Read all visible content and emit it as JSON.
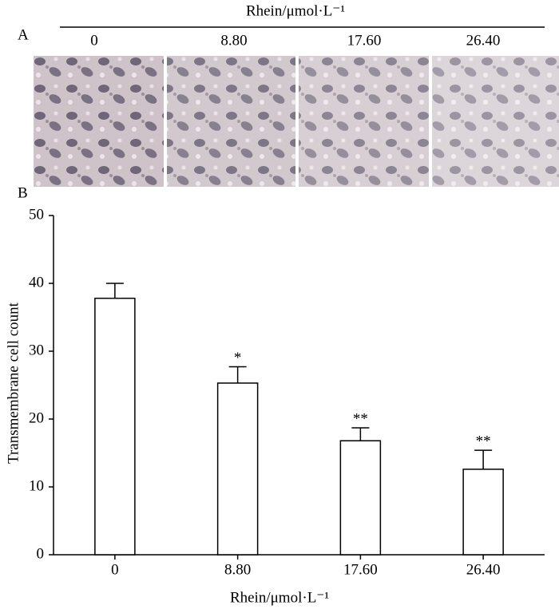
{
  "panel_a": {
    "label": "A",
    "header": "Rhein/μmol·L⁻¹",
    "columns": [
      "0",
      "8.80",
      "17.60",
      "26.40"
    ]
  },
  "chart_data": {
    "type": "bar",
    "panel_label": "B",
    "xlabel": "Rhein/μmol·L⁻¹",
    "ylabel": "Transmembrane cell count",
    "categories": [
      "0",
      "8.80",
      "17.60",
      "26.40"
    ],
    "values": [
      37.8,
      25.3,
      16.8,
      12.6
    ],
    "errors": [
      2.2,
      2.4,
      1.9,
      2.8
    ],
    "annotations": [
      null,
      "*",
      "**",
      "**"
    ],
    "color": "#ffffff",
    "ylim": [
      0,
      50
    ],
    "yticks": [
      0,
      10,
      20,
      30,
      40,
      50
    ],
    "grid": false
  }
}
